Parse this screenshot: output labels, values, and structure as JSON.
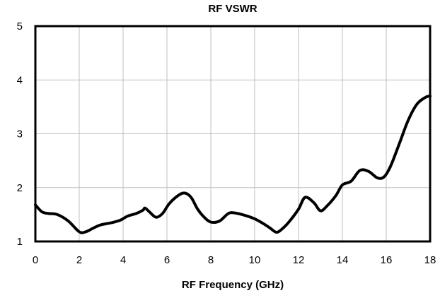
{
  "chart_data": {
    "type": "line",
    "title": "RF VSWR",
    "xlabel": "RF Frequency (GHz)",
    "ylabel": "",
    "xlim": [
      0,
      18
    ],
    "ylim": [
      1,
      5
    ],
    "x_ticks": [
      0,
      2,
      4,
      6,
      8,
      10,
      12,
      14,
      16,
      18
    ],
    "y_ticks": [
      1,
      2,
      3,
      4,
      5
    ],
    "grid": true,
    "legend": "none",
    "series": [
      {
        "color": "#000000",
        "x": [
          0,
          0.3,
          0.6,
          1.0,
          1.5,
          2.0,
          2.3,
          2.7,
          3.0,
          3.5,
          3.9,
          4.2,
          4.6,
          4.9,
          5.0,
          5.2,
          5.5,
          5.8,
          6.1,
          6.5,
          6.8,
          7.1,
          7.4,
          7.7,
          8.0,
          8.4,
          8.8,
          9.1,
          9.6,
          10.0,
          10.4,
          10.7,
          11.0,
          11.3,
          11.6,
          12.0,
          12.3,
          12.7,
          13.0,
          13.3,
          13.7,
          14.0,
          14.4,
          14.8,
          15.2,
          15.6,
          15.9,
          16.2,
          16.6,
          17.0,
          17.4,
          17.8,
          18.0
        ],
        "y": [
          1.68,
          1.55,
          1.52,
          1.5,
          1.38,
          1.18,
          1.18,
          1.26,
          1.31,
          1.35,
          1.4,
          1.47,
          1.52,
          1.58,
          1.62,
          1.55,
          1.45,
          1.52,
          1.7,
          1.85,
          1.9,
          1.82,
          1.6,
          1.45,
          1.36,
          1.38,
          1.52,
          1.53,
          1.48,
          1.42,
          1.33,
          1.25,
          1.17,
          1.25,
          1.38,
          1.6,
          1.82,
          1.72,
          1.57,
          1.66,
          1.85,
          2.05,
          2.12,
          2.32,
          2.3,
          2.18,
          2.2,
          2.4,
          2.82,
          3.25,
          3.55,
          3.68,
          3.7
        ]
      }
    ]
  }
}
